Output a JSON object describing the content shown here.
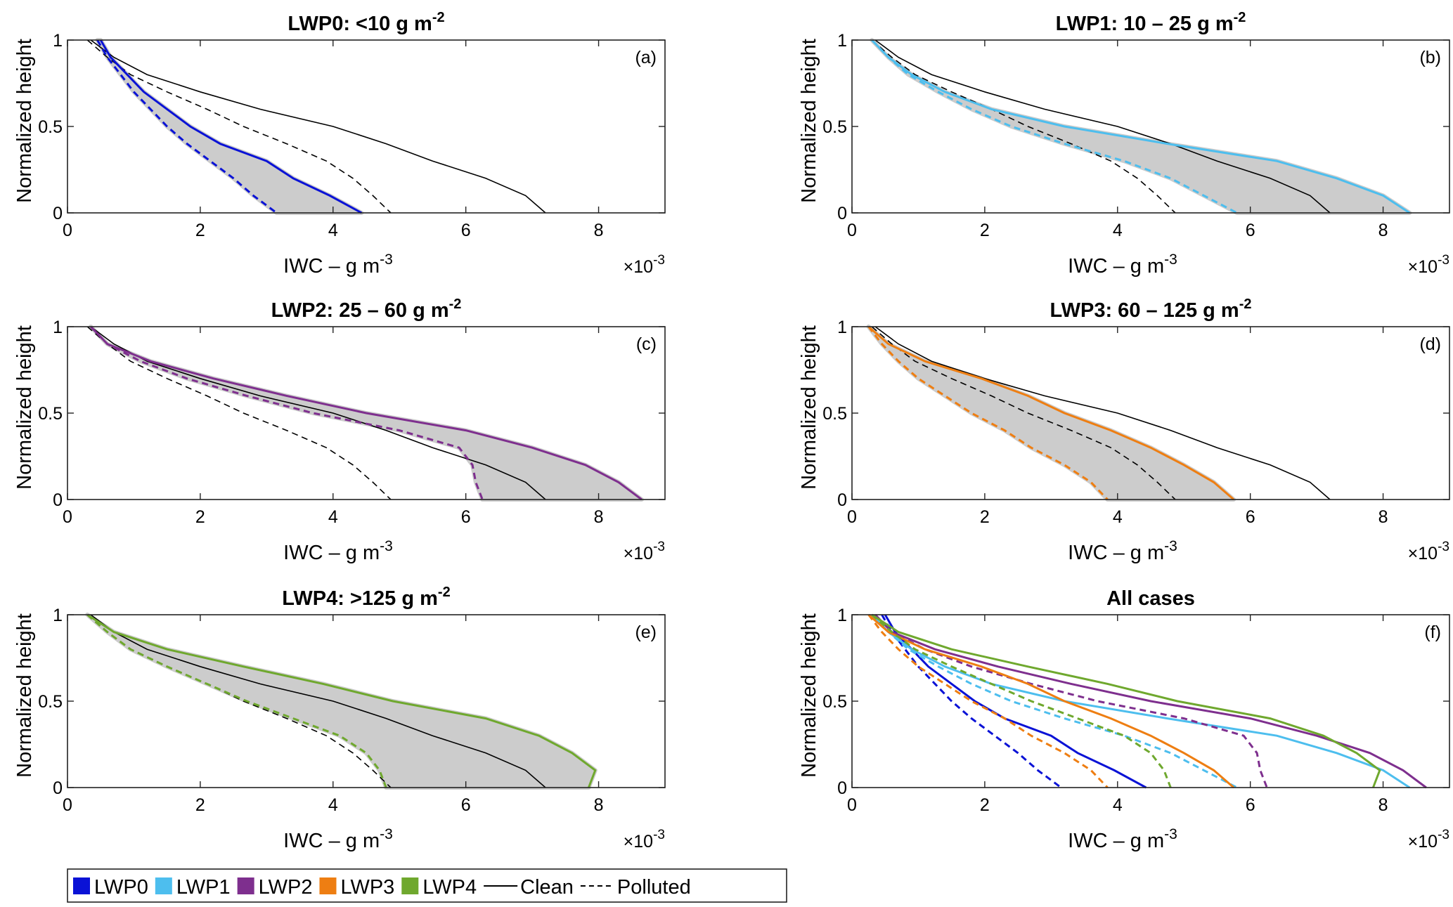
{
  "legend": {
    "items": [
      {
        "label": "LWP0",
        "color": "#0A12D6",
        "type": "patch"
      },
      {
        "label": "LWP1",
        "color": "#4DBEEE",
        "type": "patch"
      },
      {
        "label": "LWP2",
        "color": "#7E2F8E",
        "type": "patch"
      },
      {
        "label": "LWP3",
        "color": "#EE7E12",
        "type": "patch"
      },
      {
        "label": "LWP4",
        "color": "#6FA82E",
        "type": "patch"
      },
      {
        "label": "Clean",
        "color": "#000000",
        "type": "solid"
      },
      {
        "label": "Polluted",
        "color": "#000000",
        "type": "dashed"
      }
    ],
    "placement": "bottom-left"
  },
  "chart_data": {
    "type": "line",
    "heights": [
      1,
      0.9,
      0.8,
      0.7,
      0.6,
      0.5,
      0.4,
      0.3,
      0.2,
      0.1,
      0
    ],
    "xlabel": "IWC – g m",
    "xlabel_sup": "-3",
    "x_multiplier": "×10",
    "x_multiplier_sup": "-3",
    "ylabel": "Normalized height",
    "xlim": [
      0,
      9
    ],
    "ylim": [
      0,
      1
    ],
    "xticks": [
      "0",
      "2",
      "4",
      "6",
      "8"
    ],
    "yticks": [
      "0",
      "0.5",
      "1"
    ],
    "grid": false,
    "shade_color": "#CCCCCC",
    "reference": {
      "clean": [
        0.35,
        0.7,
        1.2,
        2.0,
        2.9,
        4.0,
        4.8,
        5.5,
        6.3,
        6.9,
        7.2
      ],
      "polluted": [
        0.3,
        0.6,
        0.95,
        1.5,
        2.1,
        2.65,
        3.3,
        3.9,
        4.3,
        4.6,
        4.87
      ]
    },
    "series": [
      {
        "name": "LWP0",
        "color": "#0A12D6",
        "clean": [
          0.5,
          0.65,
          0.9,
          1.15,
          1.5,
          1.85,
          2.3,
          3.0,
          3.4,
          3.95,
          4.43
        ],
        "polluted": [
          0.45,
          0.6,
          0.8,
          1.0,
          1.25,
          1.5,
          1.8,
          2.15,
          2.5,
          2.8,
          3.15
        ]
      },
      {
        "name": "LWP1",
        "color": "#4DBEEE",
        "clean": [
          0.3,
          0.55,
          0.9,
          1.4,
          2.1,
          3.2,
          4.75,
          6.4,
          7.3,
          8.0,
          8.4
        ],
        "polluted": [
          0.3,
          0.55,
          0.85,
          1.3,
          1.8,
          2.4,
          3.2,
          4.1,
          4.8,
          5.3,
          5.8
        ]
      },
      {
        "name": "LWP2",
        "color": "#7E2F8E",
        "clean": [
          0.35,
          0.6,
          1.25,
          2.2,
          3.3,
          4.5,
          6.0,
          7.0,
          7.8,
          8.3,
          8.65
        ],
        "polluted": [
          0.35,
          0.6,
          1.1,
          1.8,
          2.7,
          3.7,
          5.0,
          5.9,
          6.1,
          6.15,
          6.25
        ]
      },
      {
        "name": "LWP3",
        "color": "#EE7E12",
        "clean": [
          0.25,
          0.55,
          1.1,
          1.95,
          2.65,
          3.2,
          3.9,
          4.5,
          5.0,
          5.45,
          5.75
        ],
        "polluted": [
          0.25,
          0.45,
          0.7,
          1.0,
          1.4,
          1.8,
          2.3,
          2.7,
          3.2,
          3.6,
          3.85
        ]
      },
      {
        "name": "LWP4",
        "color": "#6FA82E",
        "clean": [
          0.3,
          0.7,
          1.5,
          2.65,
          3.85,
          4.9,
          6.3,
          7.1,
          7.6,
          7.95,
          7.85
        ],
        "polluted": [
          0.3,
          0.6,
          0.95,
          1.5,
          2.1,
          2.7,
          3.4,
          4.1,
          4.5,
          4.7,
          4.8
        ]
      }
    ],
    "panels": [
      {
        "title": "LWP0: <10 g m",
        "title_sup": "-2",
        "label": "(a)",
        "series": [
          0
        ],
        "show_reference": true
      },
      {
        "title": "LWP1: 10 – 25 g m",
        "title_sup": "-2",
        "label": "(b)",
        "series": [
          1
        ],
        "show_reference": true
      },
      {
        "title": "LWP2: 25 – 60 g m",
        "title_sup": "-2",
        "label": "(c)",
        "series": [
          2
        ],
        "show_reference": true
      },
      {
        "title": "LWP3: 60 – 125 g m",
        "title_sup": "-2",
        "label": "(d)",
        "series": [
          3
        ],
        "show_reference": true
      },
      {
        "title": "LWP4: >125 g m",
        "title_sup": "-2",
        "label": "(e)",
        "series": [
          4
        ],
        "show_reference": true
      },
      {
        "title": "All cases",
        "title_sup": "",
        "label": "(f)",
        "series": [
          0,
          1,
          2,
          3,
          4
        ],
        "show_reference": false
      }
    ]
  }
}
